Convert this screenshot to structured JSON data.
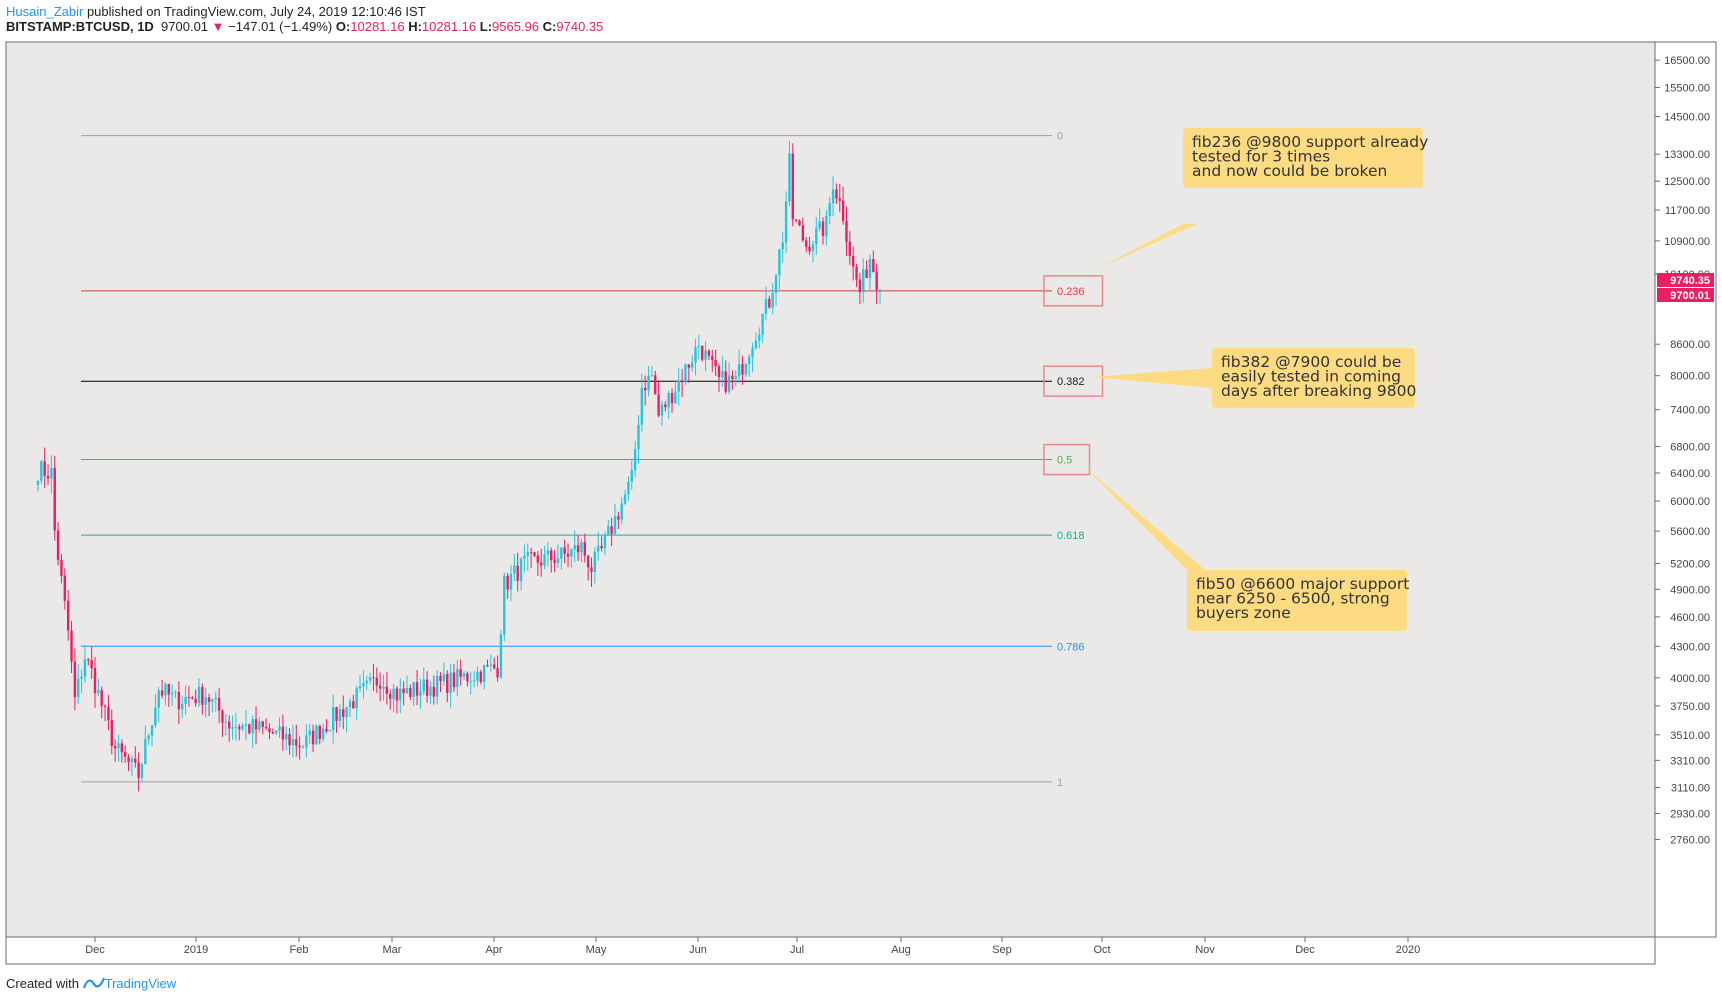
{
  "header": {
    "author": "Husain_Zabir",
    "published": " published on TradingView.com, July 24, 2019 12:10:46 IST",
    "symbol": "BITSTAMP:BTCUSD, 1D",
    "last": "9700.01",
    "change_arrow": "▼",
    "change": "−147.01 (−1.49%)",
    "o_label": "O:",
    "o_value": "10281.16",
    "h_label": "H:",
    "h_value": "10281.16",
    "l_label": "L:",
    "l_value": "9565.96",
    "c_label": "C:",
    "c_value": "9740.35"
  },
  "footer": {
    "created_with": "Created with",
    "brand": "TradingView"
  },
  "colors": {
    "up": "#26c6da",
    "down": "#e91e63",
    "background": "#ebe8e8",
    "note_fill": "#fcdb83"
  },
  "chart_data": {
    "type": "candlestick",
    "yscale": "log",
    "ylim": [
      2650,
      17000
    ],
    "x_ticks": [
      "Dec",
      "2019",
      "Feb",
      "Mar",
      "Apr",
      "May",
      "Jun",
      "Jul",
      "Aug",
      "Sep",
      "Oct",
      "Nov",
      "Dec",
      "2020"
    ],
    "y_ticks": [
      "16500.00",
      "15500.00",
      "14500.00",
      "13300.00",
      "12500.00",
      "11700.00",
      "10900.00",
      "10100.00",
      "8600.00",
      "8000.00",
      "7400.00",
      "6800.00",
      "6400.00",
      "6000.00",
      "5600.00",
      "5200.00",
      "4900.00",
      "4600.00",
      "4300.00",
      "4000.00",
      "3750.00",
      "3510.00",
      "3310.00",
      "3110.00",
      "2930.00",
      "2760.00"
    ],
    "price_tags": [
      {
        "value": "9740.35",
        "color": "#e91e63"
      },
      {
        "value": "9700.01",
        "color": "#e91e63"
      }
    ],
    "fib_levels": [
      {
        "label": "0",
        "price": 13880,
        "color": "#9e9e9e"
      },
      {
        "label": "0.236",
        "price": 9720,
        "color": "#e53935"
      },
      {
        "label": "0.382",
        "price": 7900,
        "color": "#000000"
      },
      {
        "label": "0.5",
        "price": 6600,
        "color": "#4caf50"
      },
      {
        "label": "0.618",
        "price": 5550,
        "color": "#26a69a"
      },
      {
        "label": "0.786",
        "price": 4300,
        "color": "#2196f3"
      },
      {
        "label": "1",
        "price": 3150,
        "color": "#9e9e9e"
      }
    ],
    "notes": [
      {
        "lines": [
          "fib236 @9800 support already",
          "tested for 3 times",
          "and now could be broken"
        ]
      },
      {
        "lines": [
          "fib382 @7900 could be",
          "easily tested in coming",
          "days after breaking 9800"
        ]
      },
      {
        "lines": [
          "fib50 @6600 major support",
          "near 6250 - 6500, strong",
          "buyers zone"
        ]
      }
    ],
    "series_keypoints": [
      [
        "2018-11-14",
        6450
      ],
      [
        "2018-11-18",
        6400
      ],
      [
        "2018-11-19",
        5600
      ],
      [
        "2018-11-23",
        4450
      ],
      [
        "2018-11-25",
        3800
      ],
      [
        "2018-11-28",
        4200
      ],
      [
        "2018-11-30",
        4050
      ],
      [
        "2018-12-07",
        3400
      ],
      [
        "2018-12-14",
        3200
      ],
      [
        "2018-12-20",
        3900
      ],
      [
        "2018-12-25",
        3800
      ],
      [
        "2019-01-03",
        3850
      ],
      [
        "2019-01-10",
        3600
      ],
      [
        "2019-01-20",
        3550
      ],
      [
        "2019-02-01",
        3430
      ],
      [
        "2019-02-08",
        3600
      ],
      [
        "2019-02-18",
        3850
      ],
      [
        "2019-02-24",
        4000
      ],
      [
        "2019-03-01",
        3850
      ],
      [
        "2019-03-15",
        3950
      ],
      [
        "2019-03-31",
        4100
      ],
      [
        "2019-04-02",
        4950
      ],
      [
        "2019-04-08",
        5200
      ],
      [
        "2019-04-20",
        5300
      ],
      [
        "2019-04-25",
        5400
      ],
      [
        "2019-04-28",
        5150
      ],
      [
        "2019-05-01",
        5350
      ],
      [
        "2019-05-10",
        6300
      ],
      [
        "2019-05-13",
        7800
      ],
      [
        "2019-05-16",
        8000
      ],
      [
        "2019-05-18",
        7300
      ],
      [
        "2019-05-25",
        8000
      ],
      [
        "2019-05-30",
        8600
      ],
      [
        "2019-06-05",
        7900
      ],
      [
        "2019-06-10",
        7900
      ],
      [
        "2019-06-15",
        8700
      ],
      [
        "2019-06-20",
        9500
      ],
      [
        "2019-06-24",
        11000
      ],
      [
        "2019-06-26",
        13000
      ],
      [
        "2019-06-27",
        11500
      ],
      [
        "2019-07-01",
        10800
      ],
      [
        "2019-07-07",
        11300
      ],
      [
        "2019-07-09",
        12500
      ],
      [
        "2019-07-12",
        11600
      ],
      [
        "2019-07-15",
        10200
      ],
      [
        "2019-07-17",
        9700
      ],
      [
        "2019-07-20",
        10500
      ],
      [
        "2019-07-23",
        9750
      ]
    ]
  }
}
